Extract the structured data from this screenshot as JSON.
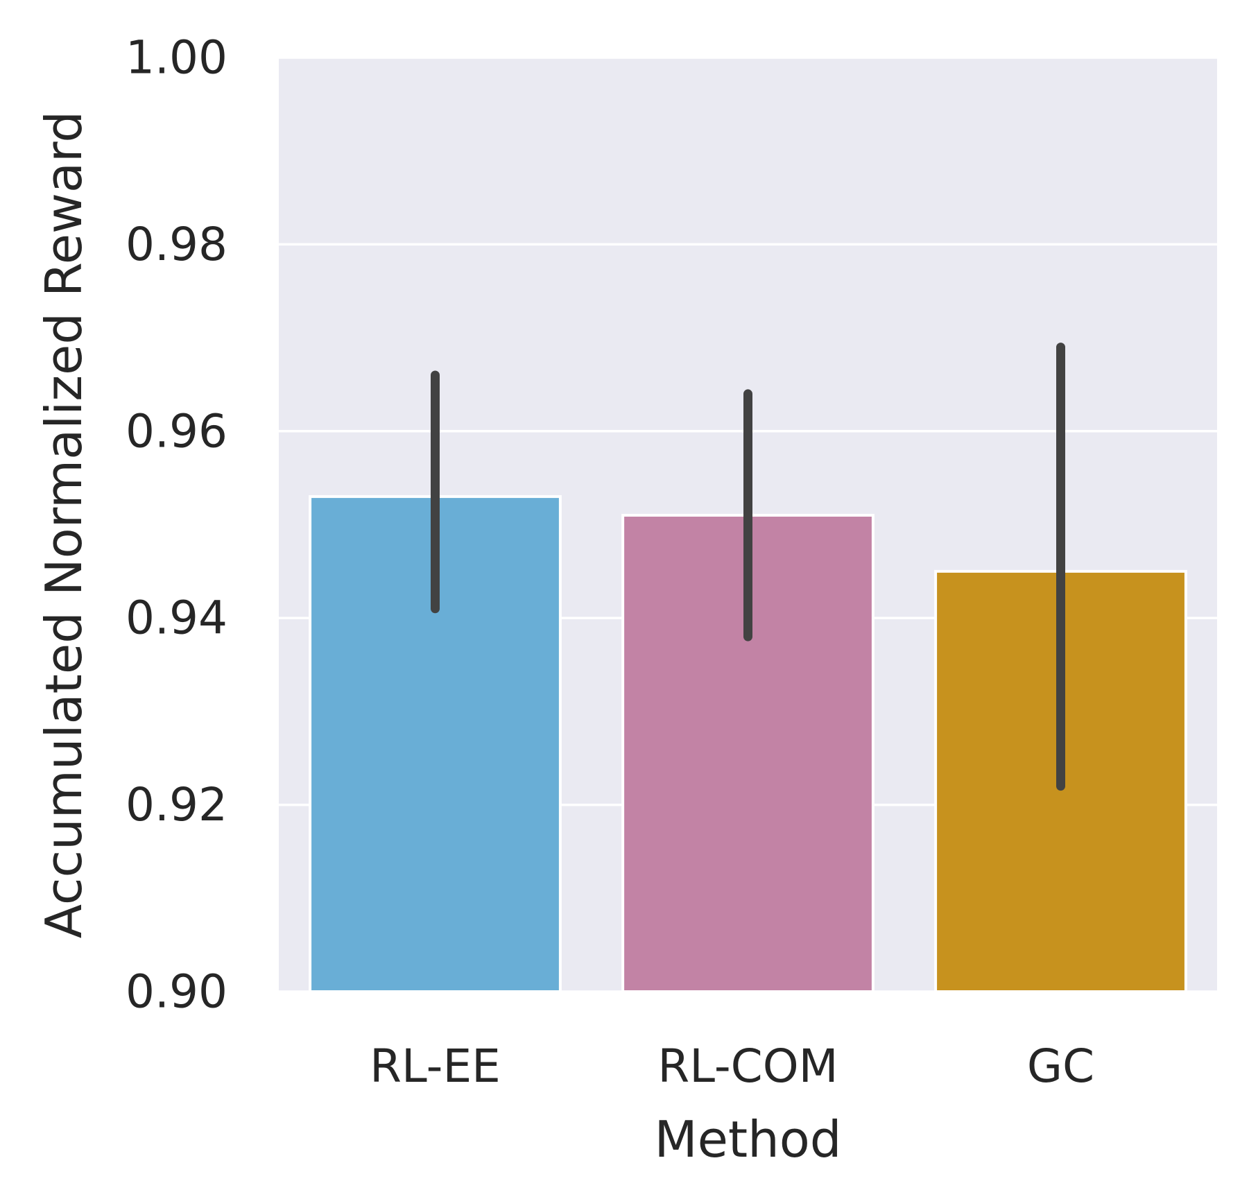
{
  "chart_data": {
    "type": "bar",
    "title": "",
    "xlabel": "Method",
    "ylabel": "Accumulated Normalized Reward",
    "categories": [
      "RL-EE",
      "RL-COM",
      "GC"
    ],
    "values": [
      0.953,
      0.951,
      0.945
    ],
    "error_bars": [
      {
        "low": 0.941,
        "high": 0.966
      },
      {
        "low": 0.938,
        "high": 0.964
      },
      {
        "low": 0.922,
        "high": 0.969
      }
    ],
    "colors": [
      "#69aed6",
      "#c283a5",
      "#c7921e"
    ],
    "error_bar_color": "#424242",
    "ylim": [
      0.9,
      1.0
    ],
    "yticks": [
      0.9,
      0.92,
      0.94,
      0.96,
      0.98,
      1.0
    ],
    "ytick_labels": [
      "0.90",
      "0.92",
      "0.94",
      "0.96",
      "0.98",
      "1.00"
    ],
    "background_color": "#eaeaf2",
    "grid": true,
    "grid_color": "#ffffff",
    "legend": false
  }
}
